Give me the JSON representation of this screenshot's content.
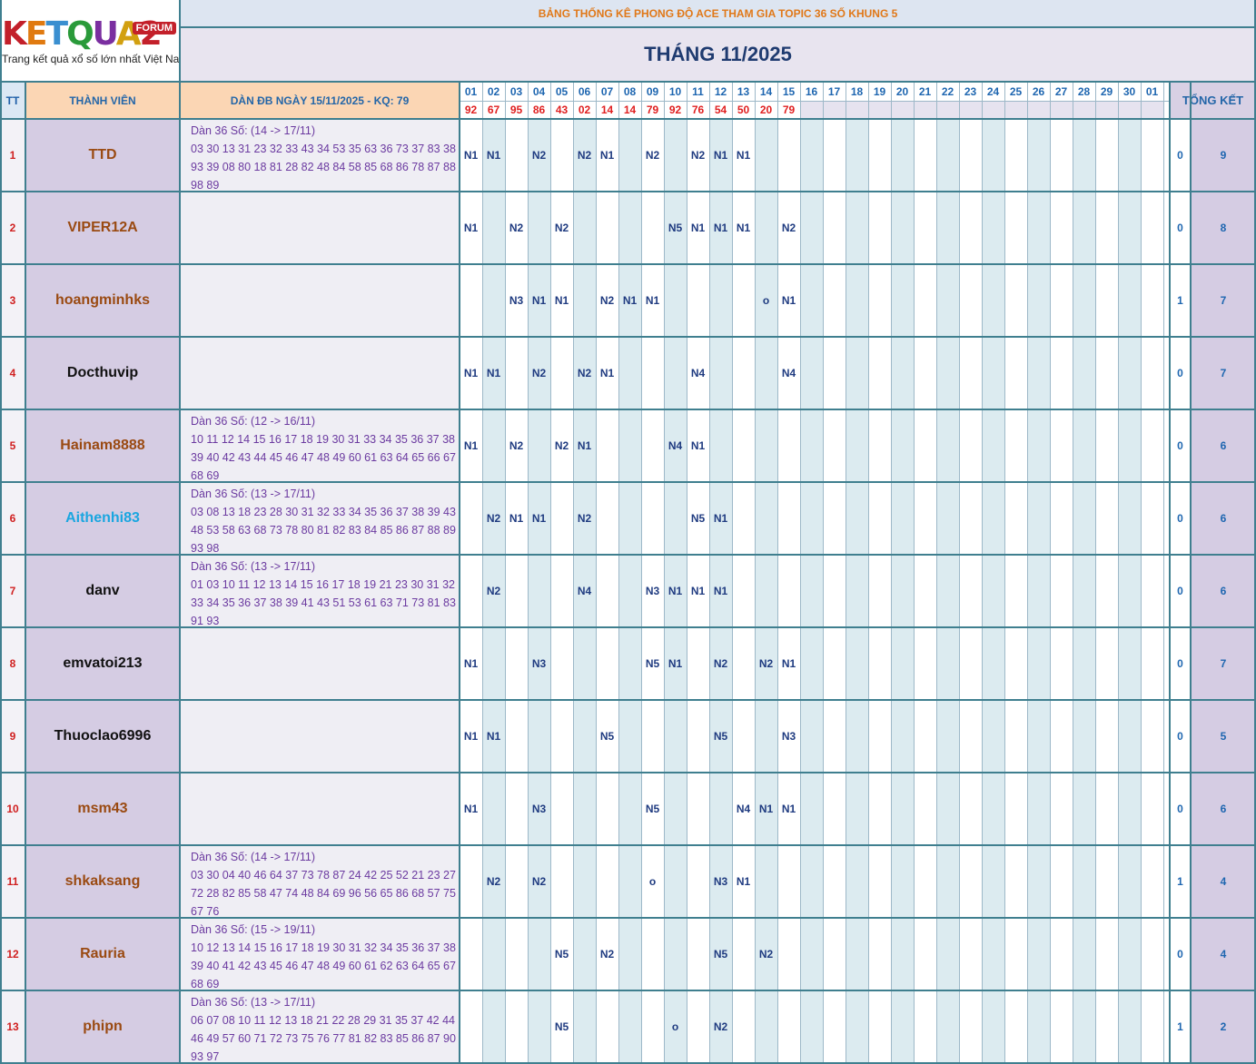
{
  "logo": {
    "brand": "KETQUA2",
    "badge": "FORUM",
    "tagline": "Trang kết quả xổ số lớn nhất Việt Nam"
  },
  "title": "BẢNG THỐNG KÊ PHONG ĐỘ ACE THAM GIA TOPIC 36 SỐ KHUNG 5",
  "month": "THÁNG 11/2025",
  "headers": {
    "tt": "TT",
    "member": "THÀNH VIÊN",
    "dan": "DÀN ĐB NGÀY 15/11/2025 - KQ: 79",
    "total": "TỔNG KẾT"
  },
  "days": [
    "01",
    "02",
    "03",
    "04",
    "05",
    "06",
    "07",
    "08",
    "09",
    "10",
    "11",
    "12",
    "13",
    "14",
    "15",
    "16",
    "17",
    "18",
    "19",
    "20",
    "21",
    "22",
    "23",
    "24",
    "25",
    "26",
    "27",
    "28",
    "29",
    "30",
    "01"
  ],
  "results": [
    "92",
    "67",
    "95",
    "86",
    "43",
    "02",
    "14",
    "14",
    "79",
    "92",
    "76",
    "54",
    "50",
    "20",
    "79",
    "",
    "",
    "",
    "",
    "",
    "",
    "",
    "",
    "",
    "",
    "",
    "",
    "",
    "",
    "",
    ""
  ],
  "colors": {
    "brown": "#9a4a12",
    "black": "#111111",
    "cyan": "#1aa6e0"
  },
  "rows": [
    {
      "tt": "1",
      "name": "TTD",
      "color": "brown",
      "dan": [
        "Dàn 36 Số: (14 -> 17/11)",
        "03 30 13 31 23 32 33 43 34 53 35 63 36 73 37 83 38",
        "93 39 08 80 18 81 28 82 48 84 58 85 68 86 78 87 88",
        "98 89"
      ],
      "cells": [
        "N1",
        "N1",
        "",
        "N2",
        "",
        "N2",
        "N1",
        "",
        "N2",
        "",
        "N2",
        "N1",
        "N1",
        "",
        "",
        "",
        "",
        "",
        "",
        "",
        "",
        "",
        "",
        "",
        "",
        "",
        "",
        "",
        "",
        "",
        ""
      ],
      "misc": "0",
      "total": "9"
    },
    {
      "tt": "2",
      "name": "VIPER12A",
      "color": "brown",
      "dan": [],
      "cells": [
        "N1",
        "",
        "N2",
        "",
        "N2",
        "",
        "",
        "",
        "",
        "N5",
        "N1",
        "N1",
        "N1",
        "",
        "N2",
        "",
        "",
        "",
        "",
        "",
        "",
        "",
        "",
        "",
        "",
        "",
        "",
        "",
        "",
        "",
        ""
      ],
      "misc": "0",
      "total": "8"
    },
    {
      "tt": "3",
      "name": "hoangminhks",
      "color": "brown",
      "dan": [],
      "cells": [
        "",
        "",
        "N3",
        "N1",
        "N1",
        "",
        "N2",
        "N1",
        "N1",
        "",
        "",
        "",
        "",
        "o",
        "N1",
        "",
        "",
        "",
        "",
        "",
        "",
        "",
        "",
        "",
        "",
        "",
        "",
        "",
        "",
        "",
        ""
      ],
      "misc": "1",
      "total": "7"
    },
    {
      "tt": "4",
      "name": "Docthuvip",
      "color": "black",
      "dan": [],
      "cells": [
        "N1",
        "N1",
        "",
        "N2",
        "",
        "N2",
        "N1",
        "",
        "",
        "",
        "N4",
        "",
        "",
        "",
        "N4",
        "",
        "",
        "",
        "",
        "",
        "",
        "",
        "",
        "",
        "",
        "",
        "",
        "",
        "",
        "",
        ""
      ],
      "misc": "0",
      "total": "7"
    },
    {
      "tt": "5",
      "name": "Hainam8888",
      "color": "brown",
      "dan": [
        "Dàn 36 Số: (12 -> 16/11)",
        "10 11 12 14 15 16 17 18 19 30 31 33 34 35 36 37 38",
        "39 40 42 43 44 45 46 47 48 49 60 61 63 64 65 66 67",
        "68 69"
      ],
      "cells": [
        "N1",
        "",
        "N2",
        "",
        "N2",
        "N1",
        "",
        "",
        "",
        "N4",
        "N1",
        "",
        "",
        "",
        "",
        "",
        "",
        "",
        "",
        "",
        "",
        "",
        "",
        "",
        "",
        "",
        "",
        "",
        "",
        "",
        ""
      ],
      "misc": "0",
      "total": "6"
    },
    {
      "tt": "6",
      "name": "Aithenhi83",
      "color": "cyan",
      "dan": [
        "Dàn 36 Số: (13 -> 17/11)",
        "03 08 13 18 23 28 30 31 32 33 34 35 36 37 38 39 43",
        "48 53 58 63 68 73 78 80 81 82 83 84 85 86 87 88 89",
        "93 98"
      ],
      "cells": [
        "",
        "N2",
        "N1",
        "N1",
        "",
        "N2",
        "",
        "",
        "",
        "",
        "N5",
        "N1",
        "",
        "",
        "",
        "",
        "",
        "",
        "",
        "",
        "",
        "",
        "",
        "",
        "",
        "",
        "",
        "",
        "",
        "",
        ""
      ],
      "misc": "0",
      "total": "6"
    },
    {
      "tt": "7",
      "name": "danv",
      "color": "black",
      "dan": [
        "Dàn 36 Số: (13 -> 17/11)",
        "01 03 10 11 12 13 14 15 16 17 18 19 21 23 30 31 32",
        "33 34 35 36 37 38 39 41 43 51 53 61 63 71 73 81 83",
        "91 93"
      ],
      "cells": [
        "",
        "N2",
        "",
        "",
        "",
        "N4",
        "",
        "",
        "N3",
        "N1",
        "N1",
        "N1",
        "",
        "",
        "",
        "",
        "",
        "",
        "",
        "",
        "",
        "",
        "",
        "",
        "",
        "",
        "",
        "",
        "",
        "",
        ""
      ],
      "misc": "0",
      "total": "6"
    },
    {
      "tt": "8",
      "name": "emvatoi213",
      "color": "black",
      "dan": [],
      "cells": [
        "N1",
        "",
        "",
        "N3",
        "",
        "",
        "",
        "",
        "N5",
        "N1",
        "",
        "N2",
        "",
        "N2",
        "N1",
        "",
        "",
        "",
        "",
        "",
        "",
        "",
        "",
        "",
        "",
        "",
        "",
        "",
        "",
        "",
        ""
      ],
      "misc": "0",
      "total": "7"
    },
    {
      "tt": "9",
      "name": "Thuoclao6996",
      "color": "black",
      "dan": [],
      "cells": [
        "N1",
        "N1",
        "",
        "",
        "",
        "",
        "N5",
        "",
        "",
        "",
        "",
        "N5",
        "",
        "",
        "N3",
        "",
        "",
        "",
        "",
        "",
        "",
        "",
        "",
        "",
        "",
        "",
        "",
        "",
        "",
        "",
        ""
      ],
      "misc": "0",
      "total": "5"
    },
    {
      "tt": "10",
      "name": "msm43",
      "color": "brown",
      "dan": [],
      "cells": [
        "N1",
        "",
        "",
        "N3",
        "",
        "",
        "",
        "",
        "N5",
        "",
        "",
        "",
        "N4",
        "N1",
        "N1",
        "",
        "",
        "",
        "",
        "",
        "",
        "",
        "",
        "",
        "",
        "",
        "",
        "",
        "",
        "",
        ""
      ],
      "misc": "0",
      "total": "6"
    },
    {
      "tt": "11",
      "name": "shkaksang",
      "color": "brown",
      "dan": [
        "Dàn 36 Số: (14 -> 17/11)",
        "03 30 04 40 46 64 37 73 78 87 24 42 25 52 21 23 27",
        "72 28 82 85 58 47 74 48 84 69 96 56 65 86 68 57 75",
        "67 76"
      ],
      "cells": [
        "",
        "N2",
        "",
        "N2",
        "",
        "",
        "",
        "",
        "o",
        "",
        "",
        "N3",
        "N1",
        "",
        "",
        "",
        "",
        "",
        "",
        "",
        "",
        "",
        "",
        "",
        "",
        "",
        "",
        "",
        "",
        "",
        ""
      ],
      "misc": "1",
      "total": "4"
    },
    {
      "tt": "12",
      "name": "Rauria",
      "color": "brown",
      "dan": [
        "Dàn 36 Số: (15 -> 19/11)",
        "10 12 13 14 15 16 17 18 19 30 31 32 34 35 36 37 38",
        "39 40 41 42 43 45 46 47 48 49 60 61 62 63 64 65 67",
        "68 69"
      ],
      "cells": [
        "",
        "",
        "",
        "",
        "N5",
        "",
        "N2",
        "",
        "",
        "",
        "",
        "N5",
        "",
        "N2",
        "",
        "",
        "",
        "",
        "",
        "",
        "",
        "",
        "",
        "",
        "",
        "",
        "",
        "",
        "",
        "",
        ""
      ],
      "misc": "0",
      "total": "4"
    },
    {
      "tt": "13",
      "name": "phipn",
      "color": "brown",
      "dan": [
        "Dàn 36 Số: (13 -> 17/11)",
        "06 07 08 10 11 12 13 18 21 22 28 29 31 35 37 42 44",
        "46 49 57 60 71 72 73 75 76 77 81 82 83 85 86 87 90",
        "93 97"
      ],
      "cells": [
        "",
        "",
        "",
        "",
        "N5",
        "",
        "",
        "",
        "",
        "o",
        "",
        "N2",
        "",
        "",
        "",
        "",
        "",
        "",
        "",
        "",
        "",
        "",
        "",
        "",
        "",
        "",
        "",
        "",
        "",
        "",
        ""
      ],
      "misc": "1",
      "total": "2"
    }
  ]
}
